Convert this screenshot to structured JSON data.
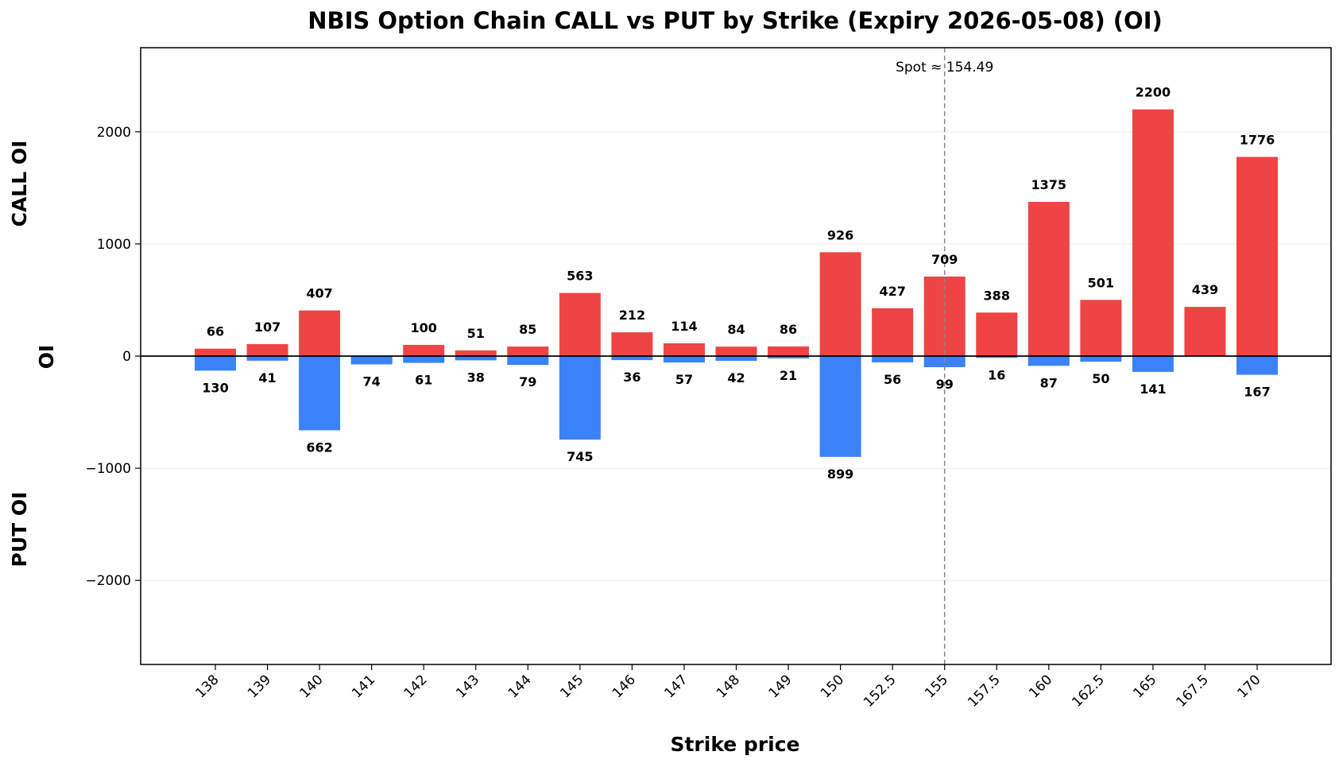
{
  "chart_data": {
    "type": "bar",
    "title": "NBIS Option Chain CALL vs PUT by Strike (Expiry 2026-05-08) (OI)",
    "xlabel": "Strike price",
    "ylabel": "OI",
    "upper_label": "CALL OI",
    "lower_label": "PUT OI",
    "categories": [
      "138",
      "139",
      "140",
      "141",
      "142",
      "143",
      "144",
      "145",
      "146",
      "147",
      "148",
      "149",
      "150",
      "152.5",
      "155",
      "157.5",
      "160",
      "162.5",
      "165",
      "167.5",
      "170"
    ],
    "series": [
      {
        "name": "CALL",
        "color": "#ef4444",
        "values": [
          66,
          107,
          407,
          0,
          100,
          51,
          85,
          563,
          212,
          114,
          84,
          86,
          926,
          427,
          709,
          388,
          1375,
          501,
          2200,
          439,
          1776
        ],
        "labels": [
          "66",
          "107",
          "407",
          "",
          "100",
          "51",
          "85",
          "563",
          "212",
          "114",
          "84",
          "86",
          "926",
          "427",
          "709",
          "388",
          "1375",
          "501",
          "2200",
          "439",
          "1776"
        ]
      },
      {
        "name": "PUT",
        "color": "#3b82f6",
        "values": [
          130,
          41,
          662,
          74,
          61,
          38,
          79,
          745,
          36,
          57,
          42,
          21,
          899,
          56,
          99,
          16,
          87,
          50,
          141,
          0,
          167
        ],
        "labels": [
          "130",
          "41",
          "662",
          "74",
          "61",
          "38",
          "79",
          "745",
          "36",
          "57",
          "42",
          "21",
          "899",
          "56",
          "99",
          "16",
          "87",
          "50",
          "141",
          "",
          "167"
        ]
      }
    ],
    "ylim": [
      -2750,
      2750
    ],
    "yticks": [
      -2000,
      -1000,
      0,
      1000,
      2000
    ],
    "ytick_labels": [
      "−2000",
      "−1000",
      "0",
      "1000",
      "2000"
    ],
    "grid": "horizontal",
    "spot": {
      "value": 154.49,
      "label": "Spot ≈ 154.49",
      "between_index": 14
    }
  }
}
